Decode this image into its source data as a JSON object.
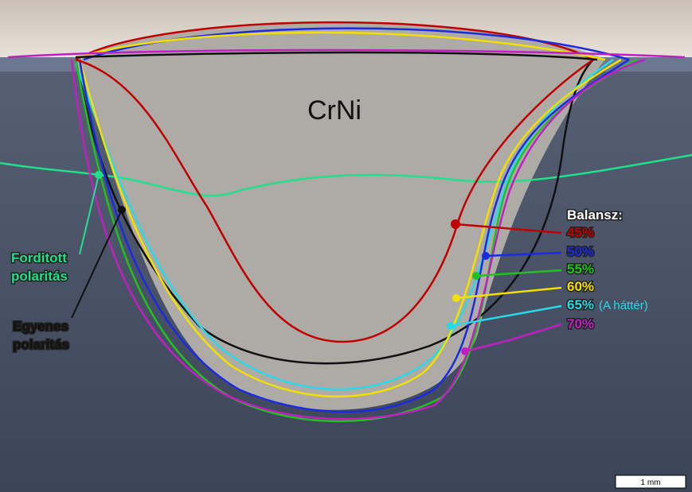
{
  "label": "CrNi",
  "legend": {
    "title": "Balansz:",
    "items": [
      {
        "text": "45%",
        "color": "#c00000"
      },
      {
        "text": "50%",
        "color": "#1a2be0"
      },
      {
        "text": "55%",
        "color": "#22c020"
      },
      {
        "text": "60%",
        "color": "#f2e000"
      },
      {
        "text": "65%",
        "color": "#2ad8e8"
      },
      {
        "text": "70%",
        "color": "#c020c0"
      }
    ],
    "note": "(A háttér)"
  },
  "annotations": {
    "reverse": {
      "lines": [
        "Forditott",
        "polaritás"
      ],
      "color": "#22e08a"
    },
    "straight": {
      "lines": [
        "Egyenes",
        "polaritás"
      ],
      "color": "#111111"
    }
  },
  "scale_bar": "1 mm"
}
